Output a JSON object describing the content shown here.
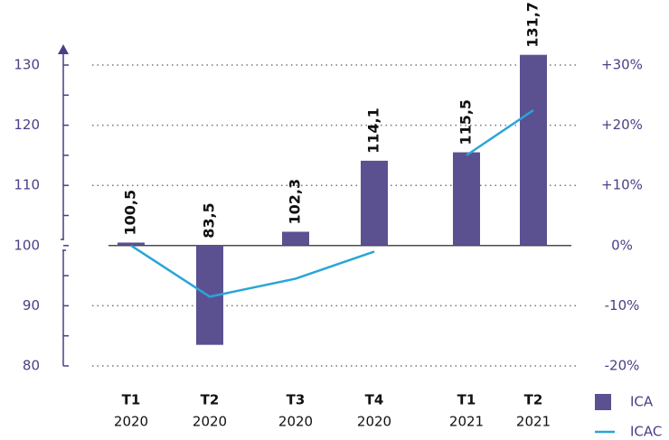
{
  "chart_data": {
    "type": "bar",
    "categories": [
      [
        "T1",
        "2020"
      ],
      [
        "T2",
        "2020"
      ],
      [
        "T3",
        "2020"
      ],
      [
        "T4",
        "2020"
      ],
      [
        "T1",
        "2021"
      ],
      [
        "T2",
        "2021"
      ]
    ],
    "series": [
      {
        "name": "ICA",
        "type": "bar",
        "color": "#5b5191",
        "values": [
          100.5,
          83.5,
          102.3,
          114.1,
          115.5,
          131.7
        ],
        "value_labels": [
          "100,5",
          "83,5",
          "102,3",
          "114,1",
          "115,5",
          "131,7"
        ]
      },
      {
        "name": "ICAC",
        "type": "line",
        "axis": "y2",
        "color": "#2aa4d8",
        "values": [
          0,
          -8.5,
          -5.5,
          -1,
          15,
          22.5
        ]
      }
    ],
    "baseline": 100,
    "ylim": [
      80,
      130
    ],
    "yticks": [
      80,
      90,
      100,
      110,
      120,
      130
    ],
    "y2lim": [
      -20,
      30
    ],
    "y2ticks": [
      {
        "value": -20,
        "label": "-20%"
      },
      {
        "value": -10,
        "label": "-10%"
      },
      {
        "value": 0,
        "label": "0%"
      },
      {
        "value": 10,
        "label": "+10%"
      },
      {
        "value": 20,
        "label": "+20%"
      },
      {
        "value": 30,
        "label": "+30%"
      }
    ],
    "grid": true
  }
}
